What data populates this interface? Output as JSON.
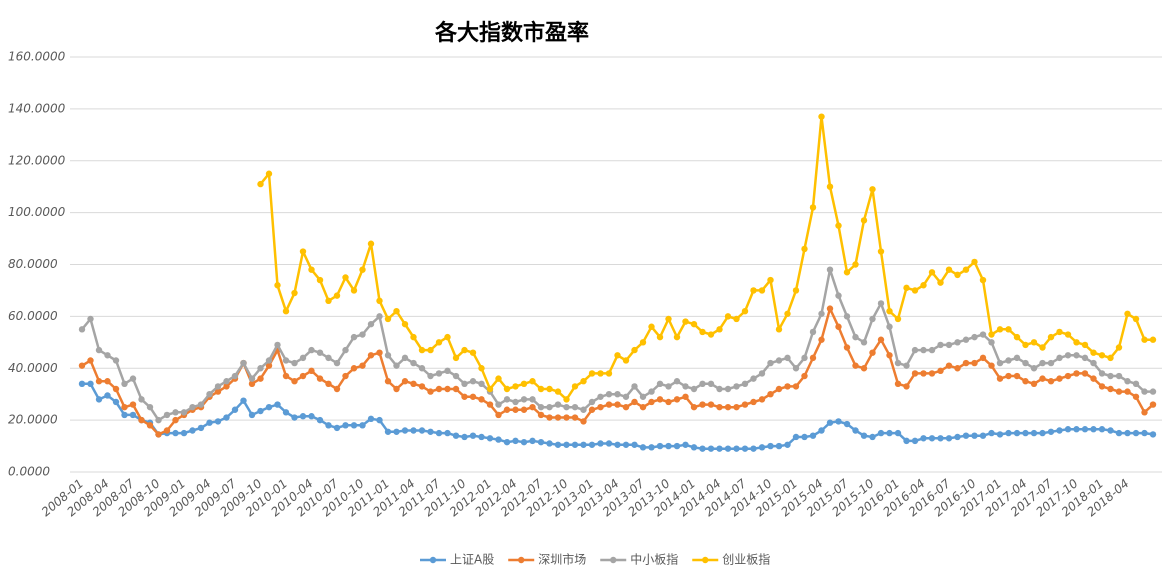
{
  "chart_data": {
    "type": "line",
    "title": "各大指数市盈率",
    "categories": [
      "2008-01",
      null,
      null,
      "2008-04",
      null,
      null,
      "2008-07",
      null,
      null,
      "2008-10",
      null,
      null,
      "2009-01",
      null,
      null,
      "2009-04",
      null,
      null,
      "2009-07",
      null,
      null,
      "2009-10",
      null,
      null,
      "2010-01",
      null,
      null,
      "2010-04",
      null,
      null,
      "2010-07",
      null,
      null,
      "2010-10",
      null,
      null,
      "2011-01",
      null,
      null,
      "2011-04",
      null,
      null,
      "2011-07",
      null,
      null,
      "2011-10",
      null,
      null,
      "2012-01",
      null,
      null,
      "2012-04",
      null,
      null,
      "2012-07",
      null,
      null,
      "2012-10",
      null,
      null,
      "2013-01",
      null,
      null,
      "2013-04",
      null,
      null,
      "2013-07",
      null,
      null,
      "2013-10",
      null,
      null,
      "2014-01",
      null,
      null,
      "2014-04",
      null,
      null,
      "2014-07",
      null,
      null,
      "2014-10",
      null,
      null,
      "2015-01",
      null,
      null,
      "2015-04",
      null,
      null,
      "2015-07",
      null,
      null,
      "2015-10",
      null,
      null,
      "2016-01",
      null,
      null,
      "2016-04",
      null,
      null,
      "2016-07",
      null,
      null,
      "2016-10",
      null,
      null,
      "2017-01",
      null,
      null,
      "2017-04",
      null,
      null,
      "2017-07",
      null,
      null,
      "2017-10",
      null,
      null,
      "2018-01",
      null,
      null,
      "2018-04",
      null,
      null,
      null
    ],
    "series": [
      {
        "name": "上证A股",
        "color": "#5b9bd5",
        "values": [
          34,
          34,
          28,
          29.5,
          27,
          22,
          22,
          20,
          19,
          14.5,
          15,
          15,
          15,
          16,
          17,
          19,
          19.5,
          21,
          24,
          27.5,
          22,
          23.5,
          25,
          26,
          23,
          21,
          21.5,
          21.5,
          20,
          18,
          17,
          18,
          18,
          18,
          20.5,
          20,
          15.5,
          15.5,
          16,
          16,
          16,
          15.5,
          15,
          15,
          14,
          13.5,
          14,
          13.5,
          13,
          12.5,
          11.5,
          12,
          11.5,
          12,
          11.5,
          11,
          10.5,
          10.5,
          10.5,
          10.5,
          10.5,
          11,
          11,
          10.5,
          10.5,
          10.5,
          9.5,
          9.5,
          10,
          10,
          10,
          10.5,
          9.5,
          9,
          9,
          9,
          9,
          9,
          9,
          9,
          9.5,
          10,
          10,
          10.5,
          13.5,
          13.5,
          14,
          16,
          19,
          19.5,
          18.5,
          16,
          14,
          13.5,
          15,
          15,
          15,
          12,
          12,
          13,
          13,
          13,
          13,
          13.5,
          14,
          14,
          14,
          15,
          14.5,
          15,
          15,
          15,
          15,
          15,
          15.5,
          16,
          16.5,
          16.5,
          16.5,
          16.5,
          16.5,
          16,
          15,
          15,
          15,
          15,
          14.5
        ]
      },
      {
        "name": "深圳市场",
        "color": "#ed7d31",
        "values": [
          41,
          43,
          35,
          35,
          32,
          25,
          26,
          20,
          18,
          14.5,
          16,
          20,
          22,
          24,
          25,
          29,
          31,
          33,
          36,
          42,
          34,
          36,
          41,
          47,
          37,
          35,
          37,
          39,
          36,
          34,
          32,
          37,
          40,
          41,
          45,
          46,
          35,
          32,
          35,
          34,
          33,
          31,
          32,
          32,
          32,
          29,
          29,
          28,
          26,
          22,
          24,
          24,
          24,
          25,
          22,
          21,
          21,
          21,
          21,
          19.5,
          24,
          25,
          26,
          26,
          25,
          27,
          25,
          27,
          28,
          27,
          28,
          29,
          25,
          26,
          26,
          25,
          25,
          25,
          26,
          27,
          28,
          30,
          32,
          33,
          33,
          37,
          44,
          51,
          63,
          56,
          48,
          41,
          40,
          46,
          51,
          45,
          34,
          33,
          38,
          38,
          38,
          39,
          41,
          40,
          42,
          42,
          44,
          41,
          36,
          37,
          37,
          35,
          34,
          36,
          35,
          36,
          37,
          38,
          38,
          36,
          33,
          32,
          31,
          31,
          29,
          23,
          26
        ]
      },
      {
        "name": "中小板指",
        "color": "#a5a5a5",
        "values": [
          55,
          59,
          47,
          45,
          43,
          34,
          36,
          28,
          25,
          20,
          22,
          23,
          23,
          25,
          26,
          30,
          33,
          35,
          37,
          42,
          36,
          40,
          43,
          49,
          43,
          42,
          44,
          47,
          46,
          44,
          42,
          47,
          52,
          53,
          57,
          60,
          45,
          41,
          44,
          42,
          40,
          37,
          38,
          39,
          37,
          34,
          35,
          34,
          31,
          26,
          28,
          27,
          28,
          28,
          25,
          25,
          26,
          25,
          25,
          24,
          27,
          29,
          30,
          30,
          29,
          33,
          29,
          31,
          34,
          33,
          35,
          33,
          32,
          34,
          34,
          32,
          32,
          33,
          34,
          36,
          38,
          42,
          43,
          44,
          40,
          44,
          54,
          61,
          78,
          68,
          60,
          52,
          50,
          59,
          65,
          56,
          42,
          41,
          47,
          47,
          47,
          49,
          49,
          50,
          51,
          52,
          53,
          50,
          42,
          43,
          44,
          42,
          40,
          42,
          42,
          44,
          45,
          45,
          44,
          42,
          38,
          37,
          37,
          35,
          34,
          31,
          31
        ]
      },
      {
        "name": "创业板指",
        "color": "#ffc000",
        "values": [
          null,
          null,
          null,
          null,
          null,
          null,
          null,
          null,
          null,
          null,
          null,
          null,
          null,
          null,
          null,
          null,
          null,
          null,
          null,
          null,
          null,
          111,
          115,
          72,
          62,
          69,
          85,
          78,
          74,
          66,
          68,
          75,
          70,
          78,
          88,
          66,
          59,
          62,
          57,
          52,
          47,
          47,
          50,
          52,
          44,
          47,
          46,
          40,
          32,
          36,
          32,
          33,
          34,
          35,
          32,
          32,
          31,
          28,
          33,
          35,
          38,
          38,
          38,
          45,
          43,
          47,
          50,
          56,
          52,
          59,
          52,
          58,
          57,
          54,
          53,
          55,
          60,
          59,
          62,
          70,
          70,
          74,
          55,
          61,
          70,
          86,
          102,
          137,
          110,
          95,
          77,
          80,
          97,
          109,
          85,
          62,
          59,
          71,
          70,
          72,
          77,
          73,
          78,
          76,
          78,
          81,
          74,
          53,
          55,
          55,
          52,
          49,
          50,
          48,
          52,
          54,
          53,
          50,
          49,
          46,
          45,
          44,
          48,
          61,
          59,
          51,
          51
        ]
      }
    ],
    "ylim": [
      0,
      160
    ],
    "yticks": [
      {
        "value": 0,
        "label": "0.0000"
      },
      {
        "value": 20,
        "label": "20.0000"
      },
      {
        "value": 40,
        "label": "40.0000"
      },
      {
        "value": 60,
        "label": "60.0000"
      },
      {
        "value": 80,
        "label": "80.0000"
      },
      {
        "value": 100,
        "label": "100.0000"
      },
      {
        "value": 120,
        "label": "120.0000"
      },
      {
        "value": 140,
        "label": "140.0000"
      },
      {
        "value": 160,
        "label": "160.0000"
      }
    ],
    "grid": true,
    "legend": "bottom"
  }
}
